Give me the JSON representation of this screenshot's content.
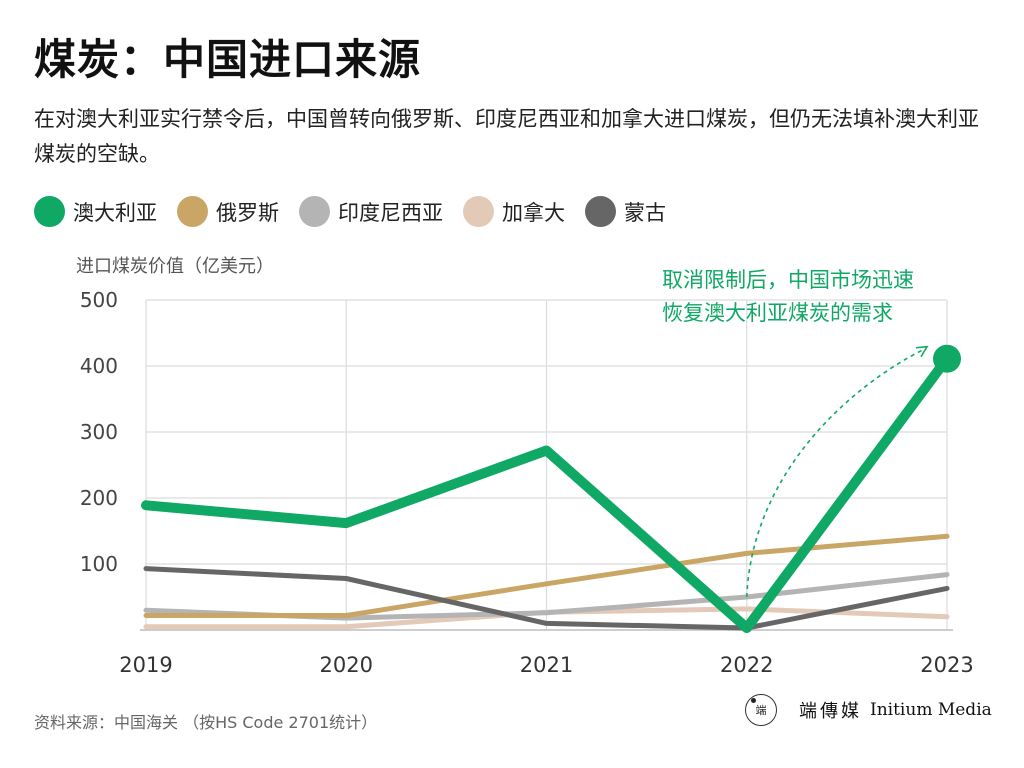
{
  "title": "煤炭：中国进口来源",
  "subtitle": "在对澳大利亚实行禁令后，中国曾转向俄罗斯、印度尼西亚和加拿大进口煤炭，但仍无法填补澳大利亚煤炭的空缺。",
  "source": "资料来源：中国海关 （按HS Code 2701统计）",
  "logo": {
    "badge_text": "端",
    "cn": "端傳媒",
    "en": "Initium Media"
  },
  "chart_data": {
    "type": "line",
    "title": "煤炭：中国进口来源",
    "ylabel": "进口煤炭价值（亿美元）",
    "xlabel": "",
    "x": [
      "2019",
      "2020",
      "2021",
      "2022",
      "2023"
    ],
    "yticks": [
      "100",
      "200",
      "300",
      "400",
      "500"
    ],
    "ylim": [
      0,
      500
    ],
    "grid": true,
    "legend_position": "top",
    "series": [
      {
        "name": "澳大利亚",
        "color": "#0fa864",
        "values": [
          189,
          162,
          272,
          3,
          411
        ],
        "highlight": true
      },
      {
        "name": "俄罗斯",
        "color": "#c9a665",
        "values": [
          22,
          22,
          70,
          116,
          142
        ]
      },
      {
        "name": "印度尼西亚",
        "color": "#b4b4b4",
        "values": [
          30,
          18,
          26,
          50,
          84
        ]
      },
      {
        "name": "加拿大",
        "color": "#e3c9b8",
        "values": [
          5,
          5,
          27,
          32,
          20
        ]
      },
      {
        "name": "蒙古",
        "color": "#666666",
        "values": [
          93,
          78,
          10,
          3,
          63
        ]
      }
    ],
    "annotation": {
      "lines": [
        "取消限制后，中国市场迅速",
        "恢复澳大利亚煤炭的需求"
      ],
      "color": "#0fa864"
    }
  }
}
